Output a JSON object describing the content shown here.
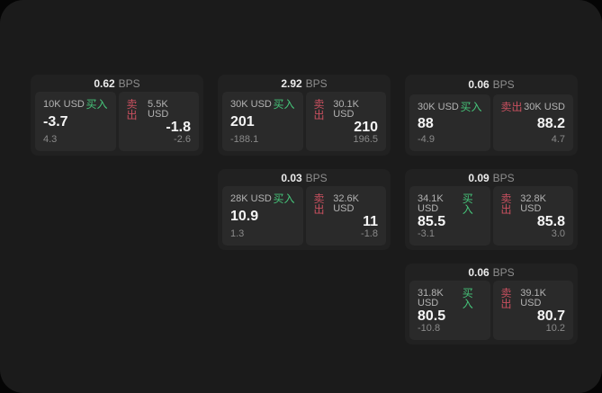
{
  "colors": {
    "page_background": "#050505",
    "surface": "#1b1b1b",
    "card_background": "#212121",
    "panel_background": "#2a2a2a",
    "buy_green": "#46c57a",
    "sell_red": "#c8505f",
    "value_white": "#f5f5f5",
    "label_gray": "#b3b3b3",
    "delta_gray": "#8a8a8a"
  },
  "labels": {
    "unit": "BPS",
    "buy": "买入",
    "sell": "卖出"
  },
  "cards": [
    {
      "bps": "0.62",
      "buy": {
        "notional": "10K USD",
        "price": "-3.7",
        "delta": "4.3"
      },
      "sell": {
        "notional": "5.5K USD",
        "price": "-1.8",
        "delta": "-2.6"
      }
    },
    {
      "bps": "2.92",
      "buy": {
        "notional": "30K USD",
        "price": "201",
        "delta": "-188.1"
      },
      "sell": {
        "notional": "30.1K USD",
        "price": "210",
        "delta": "196.5"
      }
    },
    {
      "bps": "0.06",
      "buy": {
        "notional": "30K USD",
        "price": "88",
        "delta": "-4.9"
      },
      "sell": {
        "notional": "30K USD",
        "price": "88.2",
        "delta": "4.7"
      }
    },
    {
      "bps": "0.03",
      "buy": {
        "notional": "28K USD",
        "price": "10.9",
        "delta": "1.3"
      },
      "sell": {
        "notional": "32.6K USD",
        "price": "11",
        "delta": "-1.8"
      }
    },
    {
      "bps": "0.09",
      "buy": {
        "notional": "34.1K USD",
        "price": "85.5",
        "delta": "-3.1"
      },
      "sell": {
        "notional": "32.8K USD",
        "price": "85.8",
        "delta": "3.0"
      }
    },
    {
      "bps": "0.06",
      "buy": {
        "notional": "31.8K USD",
        "price": "80.5",
        "delta": "-10.8"
      },
      "sell": {
        "notional": "39.1K USD",
        "price": "80.7",
        "delta": "10.2"
      }
    }
  ]
}
